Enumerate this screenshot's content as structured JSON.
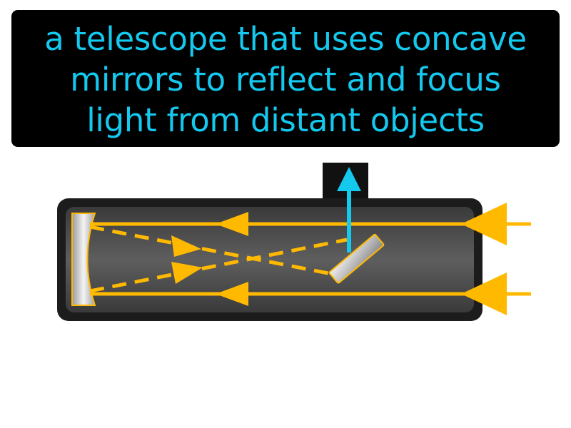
{
  "caption": {
    "lines": [
      "a telescope that uses concave",
      "mirrors to reflect and focus",
      "light from distant objects"
    ],
    "text_color": "#14c8ee",
    "background_color": "#000000"
  },
  "diagram": {
    "colors": {
      "tube_outer": "#1e1e1e",
      "tube_inner": "#5a5a5a",
      "light_ray": "#ffb900",
      "eyepiece": "#101010",
      "output_arrow": "#14c8ee",
      "mirror": "#d8d8d8"
    }
  }
}
